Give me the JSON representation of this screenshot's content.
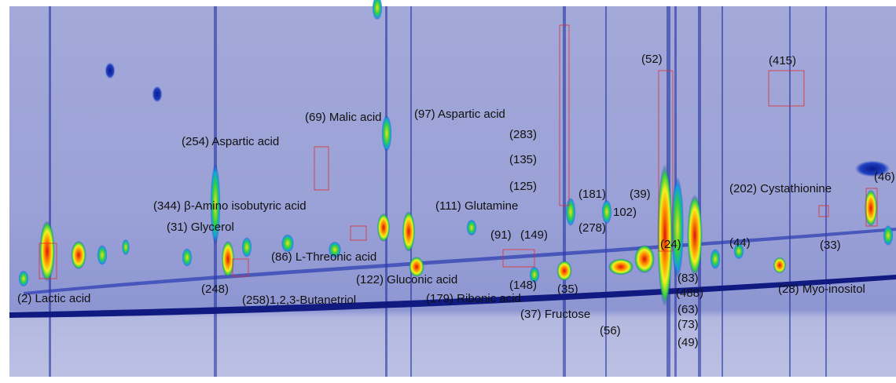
{
  "labels": [
    "(2) Lactic acid",
    "(248)",
    "(258)1,2,3-Butanetriol",
    "(31) Glycerol",
    "(344) β-Amino isobutyric acid",
    "(254) Aspartic acid",
    "(69) Malic acid",
    "(97) Aspartic acid",
    "(86) L-Threonic acid",
    "(122) Gluconic acid",
    "(91)",
    "(149)",
    "(148)",
    "(179) Ribonic acid",
    "(37) Fructose",
    "(35)",
    "(56)",
    "(111) Glutamine",
    "(283)",
    "(135)",
    "(125)",
    "(181)",
    "(278)",
    "(39)",
    "102)",
    "(52)",
    "(24)",
    "(83)",
    "(488)",
    "(63)",
    "(73)",
    "(49)",
    "(415)",
    "(44)",
    "(202) Cystathionine",
    "(46)",
    "(33)",
    "(28) Myo-inositol"
  ]
}
